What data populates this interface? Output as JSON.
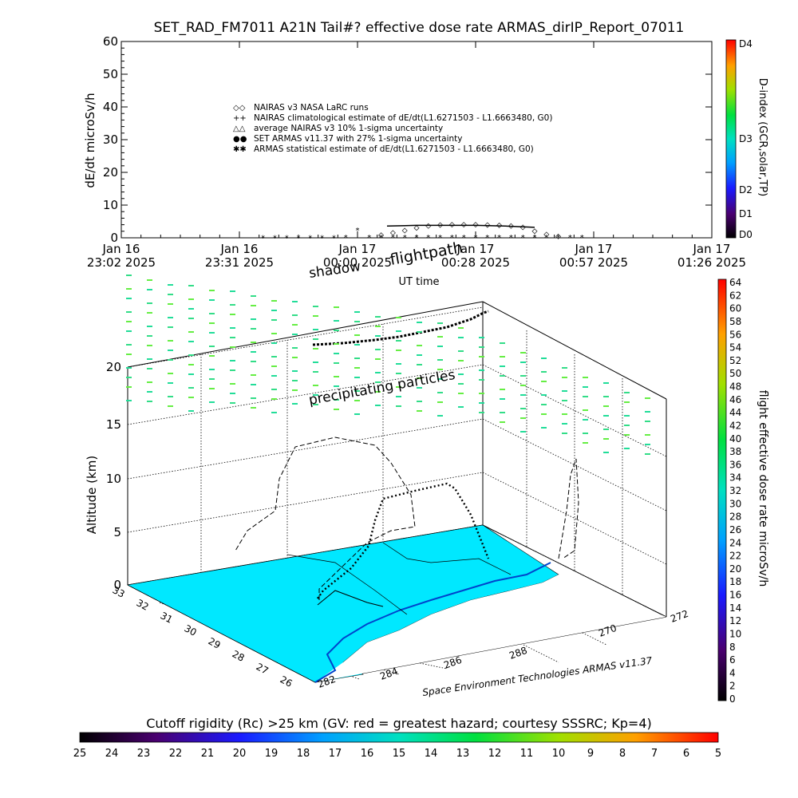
{
  "title": "SET_RAD_FM7011  A21N Tail#? effective dose rate ARMAS_dirIP_Report_07011",
  "chart_data": [
    {
      "type": "scatter",
      "ylabel": "dE/dt microSv/h",
      "xlabel": "UT time",
      "ylim": [
        0,
        60
      ],
      "yticks": [
        "0",
        "10",
        "20",
        "30",
        "40",
        "50",
        "60"
      ],
      "xticks": [
        {
          "l1": "Jan 16",
          "l2": "23:02 2025"
        },
        {
          "l1": "Jan 16",
          "l2": "23:31 2025"
        },
        {
          "l1": "Jan 17",
          "l2": "00:00 2025"
        },
        {
          "l1": "Jan 17",
          "l2": "00:28 2025"
        },
        {
          "l1": "Jan 17",
          "l2": "00:57 2025"
        },
        {
          "l1": "Jan 17",
          "l2": "01:26 2025"
        }
      ],
      "legend": [
        {
          "sym": "◇◇",
          "text": "NAIRAS v3 NASA LaRC runs"
        },
        {
          "sym": "++",
          "text": "NAIRAS climatological estimate of dE/dt(L1.6271503 - L1.6663480, G0)"
        },
        {
          "sym": "△△",
          "text": "average NAIRAS v3 10% 1-sigma uncertainty"
        },
        {
          "sym": "●●",
          "text": "SET ARMAS v11.37 with 27% 1-sigma uncertainty"
        },
        {
          "sym": "✱✱",
          "text": "ARMAS statistical estimate of dE/dt(L1.6271503 - L1.6663480, G0)"
        }
      ],
      "series": [
        {
          "kind": "armas",
          "x": [
            0.24,
            0.26,
            0.28,
            0.3,
            0.32,
            0.34,
            0.36,
            0.38,
            0.4,
            0.42,
            0.44,
            0.46,
            0.48,
            0.5,
            0.52,
            0.54,
            0.56,
            0.58,
            0.6,
            0.62,
            0.64,
            0.66,
            0.68,
            0.7,
            0.72,
            0.74,
            0.76,
            0.78
          ],
          "values": [
            0.1,
            0.1,
            0.1,
            0.1,
            0.1,
            0.1,
            0.1,
            0.2,
            2.5,
            0.3,
            0.2,
            0.2,
            0.2,
            0.2,
            0.2,
            0.2,
            0.3,
            0.3,
            0.3,
            0.3,
            0.3,
            0.3,
            0.3,
            0.3,
            0.3,
            0.3,
            0.2,
            0.2
          ]
        },
        {
          "kind": "nairas",
          "x": [
            0.44,
            0.46,
            0.48,
            0.5,
            0.52,
            0.54,
            0.56,
            0.58,
            0.6,
            0.62,
            0.64,
            0.66,
            0.68,
            0.7,
            0.72,
            0.74
          ],
          "values": [
            0.8,
            1.5,
            2.2,
            3.0,
            3.6,
            3.9,
            4.0,
            4.0,
            4.0,
            3.9,
            3.8,
            3.6,
            3.2,
            2.0,
            1.0,
            0.4
          ]
        }
      ],
      "d_index_bar": [
        "D0",
        "D1",
        "D2",
        "D3",
        "D4"
      ],
      "d_index_label": "D-index (GCR,solar,TP)"
    },
    {
      "type": "scatter",
      "zlabel": "Altitude (km)",
      "zticks": [
        "0",
        "5",
        "10",
        "15",
        "20"
      ],
      "lat_ticks": [
        "33",
        "32",
        "31",
        "30",
        "29",
        "28",
        "27",
        "26"
      ],
      "lon_ticks": [
        "282",
        "284",
        "286",
        "288",
        "270",
        "272"
      ],
      "annotations": {
        "flightpath": "flightpath",
        "shadow": "shadow",
        "particles": "precipitating particles"
      },
      "credit": "Space Environment Technologies ARMAS v11.37",
      "dose_bar_label": "flight effective dose rate microSv/h",
      "dose_bar_ticks": [
        "0",
        "2",
        "4",
        "6",
        "8",
        "10",
        "12",
        "14",
        "16",
        "18",
        "20",
        "22",
        "24",
        "26",
        "28",
        "30",
        "32",
        "34",
        "36",
        "38",
        "40",
        "42",
        "44",
        "46",
        "48",
        "50",
        "52",
        "54",
        "56",
        "58",
        "60",
        "62",
        "64"
      ]
    },
    {
      "type": "heatmap",
      "title": "Cutoff rigidity (Rc) >25 km (GV: red = greatest hazard; courtesy SSSRC; Kp=4)",
      "ticks": [
        "25",
        "24",
        "23",
        "22",
        "21",
        "20",
        "19",
        "18",
        "17",
        "16",
        "15",
        "14",
        "13",
        "12",
        "11",
        "10",
        "9",
        "8",
        "7",
        "6",
        "5"
      ]
    }
  ]
}
